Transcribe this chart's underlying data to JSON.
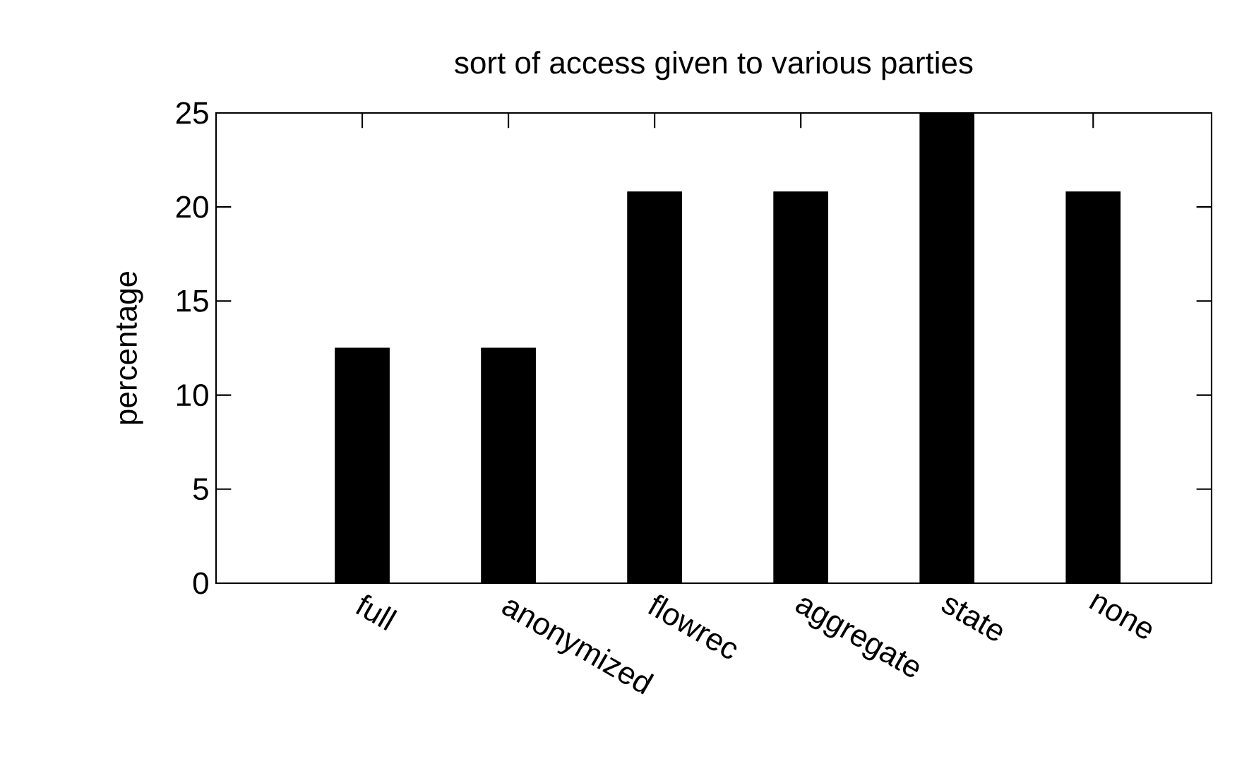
{
  "chart_data": {
    "type": "bar",
    "title": "sort of access given to various parties",
    "ylabel": "percentage",
    "categories": [
      "full",
      "anonymized",
      "flowrec",
      "aggregate",
      "state",
      "none"
    ],
    "values": [
      12.5,
      12.5,
      20.8,
      20.8,
      25,
      20.8
    ],
    "color": "#000000",
    "ylim": [
      0,
      25
    ],
    "yticks": [
      0,
      5,
      10,
      15,
      20,
      25
    ]
  }
}
